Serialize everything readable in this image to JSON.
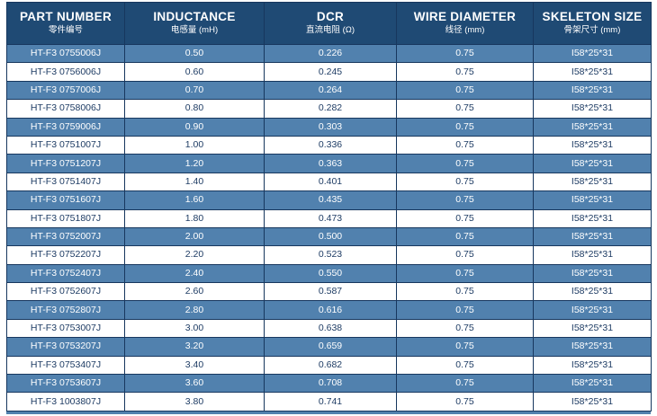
{
  "table": {
    "columns": [
      {
        "key": "part-number",
        "en": "PART NUMBER",
        "zh": "零件编号"
      },
      {
        "key": "inductance",
        "en": "INDUCTANCE",
        "zh": "电感量 (mH)"
      },
      {
        "key": "dcr",
        "en": "DCR",
        "zh": "直流电阻 (Ω)"
      },
      {
        "key": "wire-diameter",
        "en": "WIRE DIAMETER",
        "zh": "线径 (mm)"
      },
      {
        "key": "skeleton-size",
        "en": "SKELETON SIZE",
        "zh": "骨架尺寸 (mm)"
      }
    ],
    "rows": [
      [
        "HT-F3 0755006J",
        "0.50",
        "0.226",
        "0.75",
        "I58*25*31"
      ],
      [
        "HT-F3 0756006J",
        "0.60",
        "0.245",
        "0.75",
        "I58*25*31"
      ],
      [
        "HT-F3 0757006J",
        "0.70",
        "0.264",
        "0.75",
        "I58*25*31"
      ],
      [
        "HT-F3 0758006J",
        "0.80",
        "0.282",
        "0.75",
        "I58*25*31"
      ],
      [
        "HT-F3 0759006J",
        "0.90",
        "0.303",
        "0.75",
        "I58*25*31"
      ],
      [
        "HT-F3 0751007J",
        "1.00",
        "0.336",
        "0.75",
        "I58*25*31"
      ],
      [
        "HT-F3 0751207J",
        "1.20",
        "0.363",
        "0.75",
        "I58*25*31"
      ],
      [
        "HT-F3 0751407J",
        "1.40",
        "0.401",
        "0.75",
        "I58*25*31"
      ],
      [
        "HT-F3 0751607J",
        "1.60",
        "0.435",
        "0.75",
        "I58*25*31"
      ],
      [
        "HT-F3 0751807J",
        "1.80",
        "0.473",
        "0.75",
        "I58*25*31"
      ],
      [
        "HT-F3 0752007J",
        "2.00",
        "0.500",
        "0.75",
        "I58*25*31"
      ],
      [
        "HT-F3 0752207J",
        "2.20",
        "0.523",
        "0.75",
        "I58*25*31"
      ],
      [
        "HT-F3 0752407J",
        "2.40",
        "0.550",
        "0.75",
        "I58*25*31"
      ],
      [
        "HT-F3 0752607J",
        "2.60",
        "0.587",
        "0.75",
        "I58*25*31"
      ],
      [
        "HT-F3 0752807J",
        "2.80",
        "0.616",
        "0.75",
        "I58*25*31"
      ],
      [
        "HT-F3 0753007J",
        "3.00",
        "0.638",
        "0.75",
        "I58*25*31"
      ],
      [
        "HT-F3 0753207J",
        "3.20",
        "0.659",
        "0.75",
        "I58*25*31"
      ],
      [
        "HT-F3 0753407J",
        "3.40",
        "0.682",
        "0.75",
        "I58*25*31"
      ],
      [
        "HT-F3 0753607J",
        "3.60",
        "0.708",
        "0.75",
        "I58*25*31"
      ],
      [
        "HT-F3 1003807J",
        "3.80",
        "0.741",
        "0.75",
        "I58*25*31"
      ]
    ]
  },
  "colors": {
    "header_bg": "#1F4A74",
    "row_blue": "#5181AE",
    "row_white": "#FFFFFF",
    "text_dark": "#1E3C64",
    "border": "#17375E"
  }
}
